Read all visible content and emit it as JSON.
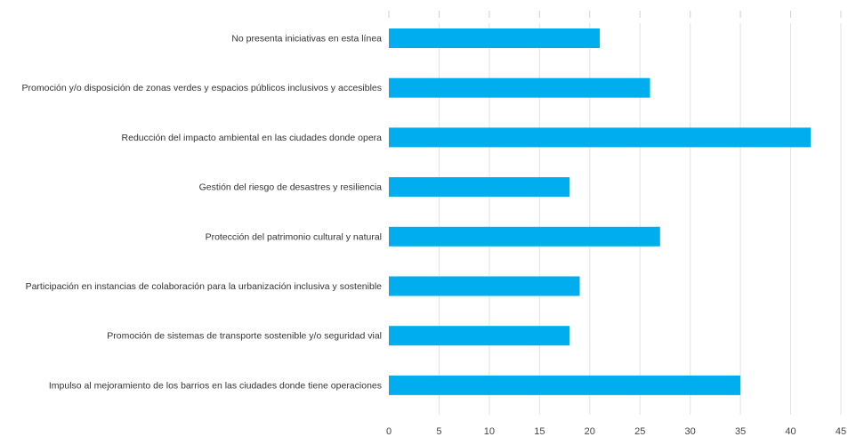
{
  "chart_data": {
    "type": "bar",
    "orientation": "horizontal",
    "title": "",
    "xlabel": "",
    "ylabel": "",
    "categories": [
      "No presenta iniciativas en esta línea",
      "Promoción y/o disposición de zonas verdes y espacios públicos inclusivos y accesibles",
      "Reducción del impacto ambiental en las ciudades donde opera",
      "Gestión del riesgo de desastres y resiliencia",
      "Protección del patrimonio cultural y natural",
      "Participación en instancias de colaboración para la urbanización inclusiva y sostenible",
      "Promoción de sistemas de transporte sostenible y/o seguridad vial",
      "Impulso al mejoramiento de los barrios en las ciudades donde tiene operaciones"
    ],
    "values": [
      21,
      26,
      42,
      18,
      27,
      19,
      18,
      35
    ],
    "xlim": [
      0,
      45
    ],
    "xticks": [
      "0",
      "5",
      "10",
      "15",
      "20",
      "25",
      "30",
      "35",
      "40",
      "45"
    ],
    "bar_color": "#00aeef",
    "grid": true,
    "legend": "none"
  }
}
